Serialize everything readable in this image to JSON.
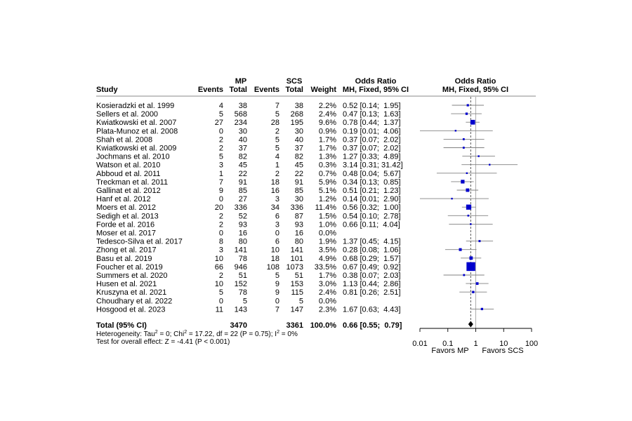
{
  "chart_data": {
    "type": "forest",
    "title": "",
    "headers": {
      "study": "Study",
      "mp_group": "MP",
      "scs_group": "SCS",
      "events": "Events",
      "total": "Total",
      "weight": "Weight",
      "or_text_title": "Odds Ratio",
      "or_text_method": "MH, Fixed, 95% CI",
      "or_plot_title": "Odds Ratio",
      "or_plot_method": "MH, Fixed, 95% CI"
    },
    "studies": [
      {
        "name": "Kosieradzki et al. 1999",
        "e1": "4",
        "n1": "38",
        "e2": "7",
        "n2": "38",
        "weight": "2.2%",
        "ci_text": "0.52 [0.14;  1.95]",
        "or": 0.52,
        "lo": 0.14,
        "hi": 1.95
      },
      {
        "name": "Sellers et al. 2000",
        "e1": "5",
        "n1": "568",
        "e2": "5",
        "n2": "268",
        "weight": "2.4%",
        "ci_text": "0.47 [0.13;  1.63]",
        "or": 0.47,
        "lo": 0.13,
        "hi": 1.63
      },
      {
        "name": "Kwiatkowski et al. 2007",
        "e1": "27",
        "n1": "234",
        "e2": "28",
        "n2": "195",
        "weight": "9.6%",
        "ci_text": "0.78 [0.44;  1.37]",
        "or": 0.78,
        "lo": 0.44,
        "hi": 1.37
      },
      {
        "name": "Plata-Munoz et al. 2008",
        "e1": "0",
        "n1": "30",
        "e2": "2",
        "n2": "30",
        "weight": "0.9%",
        "ci_text": "0.19 [0.01;  4.06]",
        "or": 0.19,
        "lo": 0.01,
        "hi": 4.06
      },
      {
        "name": "Shah et al. 2008",
        "e1": "2",
        "n1": "40",
        "e2": "5",
        "n2": "40",
        "weight": "1.7%",
        "ci_text": "0.37 [0.07;  2.02]",
        "or": 0.37,
        "lo": 0.07,
        "hi": 2.02
      },
      {
        "name": "Kwiatkowski et al. 2009",
        "e1": "2",
        "n1": "37",
        "e2": "5",
        "n2": "37",
        "weight": "1.7%",
        "ci_text": "0.37 [0.07;  2.02]",
        "or": 0.37,
        "lo": 0.07,
        "hi": 2.02
      },
      {
        "name": "Jochmans et al. 2010",
        "e1": "5",
        "n1": "82",
        "e2": "4",
        "n2": "82",
        "weight": "1.3%",
        "ci_text": "1.27 [0.33;  4.89]",
        "or": 1.27,
        "lo": 0.33,
        "hi": 4.89
      },
      {
        "name": "Watson et al. 2010",
        "e1": "3",
        "n1": "45",
        "e2": "1",
        "n2": "45",
        "weight": "0.3%",
        "ci_text": "3.14 [0.31; 31.42]",
        "or": 3.14,
        "lo": 0.31,
        "hi": 31.42
      },
      {
        "name": "Abboud et al. 2011",
        "e1": "1",
        "n1": "22",
        "e2": "2",
        "n2": "22",
        "weight": "0.7%",
        "ci_text": "0.48 [0.04;  5.67]",
        "or": 0.48,
        "lo": 0.04,
        "hi": 5.67
      },
      {
        "name": "Treckman et al. 2011",
        "e1": "7",
        "n1": "91",
        "e2": "18",
        "n2": "91",
        "weight": "5.9%",
        "ci_text": "0.34 [0.13;  0.85]",
        "or": 0.34,
        "lo": 0.13,
        "hi": 0.85
      },
      {
        "name": "Gallinat et al. 2012",
        "e1": "9",
        "n1": "85",
        "e2": "16",
        "n2": "85",
        "weight": "5.1%",
        "ci_text": "0.51 [0.21;  1.23]",
        "or": 0.51,
        "lo": 0.21,
        "hi": 1.23
      },
      {
        "name": "Hanf et al. 2012",
        "e1": "0",
        "n1": "27",
        "e2": "3",
        "n2": "30",
        "weight": "1.2%",
        "ci_text": "0.14 [0.01;  2.90]",
        "or": 0.14,
        "lo": 0.01,
        "hi": 2.9
      },
      {
        "name": "Moers et al. 2012",
        "e1": "20",
        "n1": "336",
        "e2": "34",
        "n2": "336",
        "weight": "11.4%",
        "ci_text": "0.56 [0.32;  1.00]",
        "or": 0.56,
        "lo": 0.32,
        "hi": 1.0
      },
      {
        "name": "Sedigh et al. 2013",
        "e1": "2",
        "n1": "52",
        "e2": "6",
        "n2": "87",
        "weight": "1.5%",
        "ci_text": "0.54 [0.10;  2.78]",
        "or": 0.54,
        "lo": 0.1,
        "hi": 2.78
      },
      {
        "name": "Forde et al. 2016",
        "e1": "2",
        "n1": "93",
        "e2": "3",
        "n2": "93",
        "weight": "1.0%",
        "ci_text": "0.66 [0.11;  4.04]",
        "or": 0.66,
        "lo": 0.11,
        "hi": 4.04
      },
      {
        "name": "Moser et al. 2017",
        "e1": "0",
        "n1": "16",
        "e2": "0",
        "n2": "16",
        "weight": "0.0%",
        "ci_text": "",
        "or": null,
        "lo": null,
        "hi": null
      },
      {
        "name": "Tedesco-Silva et al. 2017",
        "e1": "8",
        "n1": "80",
        "e2": "6",
        "n2": "80",
        "weight": "1.9%",
        "ci_text": "1.37 [0.45;  4.15]",
        "or": 1.37,
        "lo": 0.45,
        "hi": 4.15
      },
      {
        "name": "Zhong et al. 2017",
        "e1": "3",
        "n1": "141",
        "e2": "10",
        "n2": "141",
        "weight": "3.5%",
        "ci_text": "0.28 [0.08;  1.06]",
        "or": 0.28,
        "lo": 0.08,
        "hi": 1.06
      },
      {
        "name": "Basu et al. 2019",
        "e1": "10",
        "n1": "78",
        "e2": "18",
        "n2": "101",
        "weight": "4.9%",
        "ci_text": "0.68 [0.29;  1.57]",
        "or": 0.68,
        "lo": 0.29,
        "hi": 1.57
      },
      {
        "name": "Foucher et al. 2019",
        "e1": "66",
        "n1": "946",
        "e2": "108",
        "n2": "1073",
        "weight": "33.5%",
        "ci_text": "0.67 [0.49;  0.92]",
        "or": 0.67,
        "lo": 0.49,
        "hi": 0.92
      },
      {
        "name": "Summers et al. 2020",
        "e1": "2",
        "n1": "51",
        "e2": "5",
        "n2": "51",
        "weight": "1.7%",
        "ci_text": "0.38 [0.07;  2.03]",
        "or": 0.38,
        "lo": 0.07,
        "hi": 2.03
      },
      {
        "name": "Husen et al. 2021",
        "e1": "10",
        "n1": "152",
        "e2": "9",
        "n2": "153",
        "weight": "3.0%",
        "ci_text": "1.13 [0.44;  2.86]",
        "or": 1.13,
        "lo": 0.44,
        "hi": 2.86
      },
      {
        "name": "Kruszyna et al. 2021",
        "e1": "5",
        "n1": "78",
        "e2": "9",
        "n2": "115",
        "weight": "2.4%",
        "ci_text": "0.81 [0.26;  2.51]",
        "or": 0.81,
        "lo": 0.26,
        "hi": 2.51
      },
      {
        "name": "Choudhary et al. 2022",
        "e1": "0",
        "n1": "5",
        "e2": "0",
        "n2": "5",
        "weight": "0.0%",
        "ci_text": "",
        "or": null,
        "lo": null,
        "hi": null
      },
      {
        "name": "Hosgood et al. 2023",
        "e1": "11",
        "n1": "143",
        "e2": "7",
        "n2": "147",
        "weight": "2.3%",
        "ci_text": "1.67 [0.63;  4.43]",
        "or": 1.67,
        "lo": 0.63,
        "hi": 4.43
      }
    ],
    "total": {
      "name": "Total (95% CI)",
      "n1": "3470",
      "n2": "3361",
      "weight": "100.0%",
      "ci_text": "0.66 [0.55;  0.79]",
      "or": 0.66,
      "lo": 0.55,
      "hi": 0.79
    },
    "heterogeneity": {
      "p1": "Heterogeneity: Tau",
      "s1": "2",
      "p2": " = 0; Chi",
      "s2": "2",
      "p3": " = 17.22, df = 22 (P = 0.75); I",
      "s3": "2",
      "p4": " = 0%"
    },
    "overall_effect": "Test for overall effect: Z = -4.41 (P < 0.001)",
    "x_axis": {
      "scale": "log",
      "range": [
        0.01,
        100
      ],
      "ticks": [
        0.01,
        0.1,
        1,
        10,
        100
      ],
      "tick_labels": [
        "0.01",
        "0.1",
        "1",
        "10",
        "100"
      ],
      "reference_line": 1,
      "left_label": "Favors MP",
      "right_label": "Favors SCS"
    },
    "colors": {
      "square": "#0000CC",
      "lines": "#000000",
      "ci_lines": "#808080",
      "separator": "#888888"
    }
  }
}
